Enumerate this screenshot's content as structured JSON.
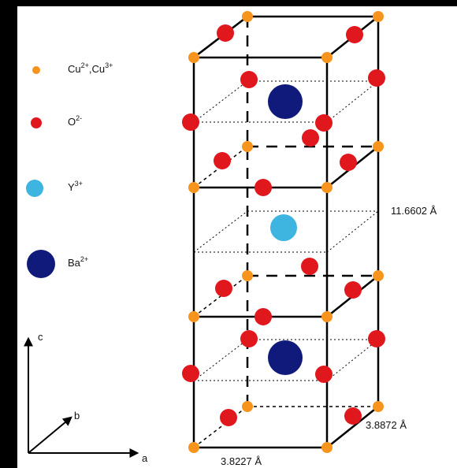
{
  "legend": {
    "items": [
      {
        "name": "copper-ion",
        "label_main": "Cu",
        "label_sup": "2+",
        "label_mid": ",Cu",
        "label_sup2": "3+",
        "color": "#f7941d"
      },
      {
        "name": "oxygen-ion",
        "label_main": "O",
        "label_sup": "2-",
        "color": "#e0181e"
      },
      {
        "name": "yttrium-ion",
        "label_main": "Y",
        "label_sup": "3+",
        "color": "#3db5e0"
      },
      {
        "name": "barium-ion",
        "label_main": "Ba",
        "label_sup": "2+",
        "color": "#0f1a7a"
      }
    ]
  },
  "axes": {
    "c": "c",
    "b": "b",
    "a": "a"
  },
  "dimensions": {
    "c_length": "11.6602 Å",
    "b_length": "3.8872 Å",
    "a_length": "3.8227 Å"
  }
}
